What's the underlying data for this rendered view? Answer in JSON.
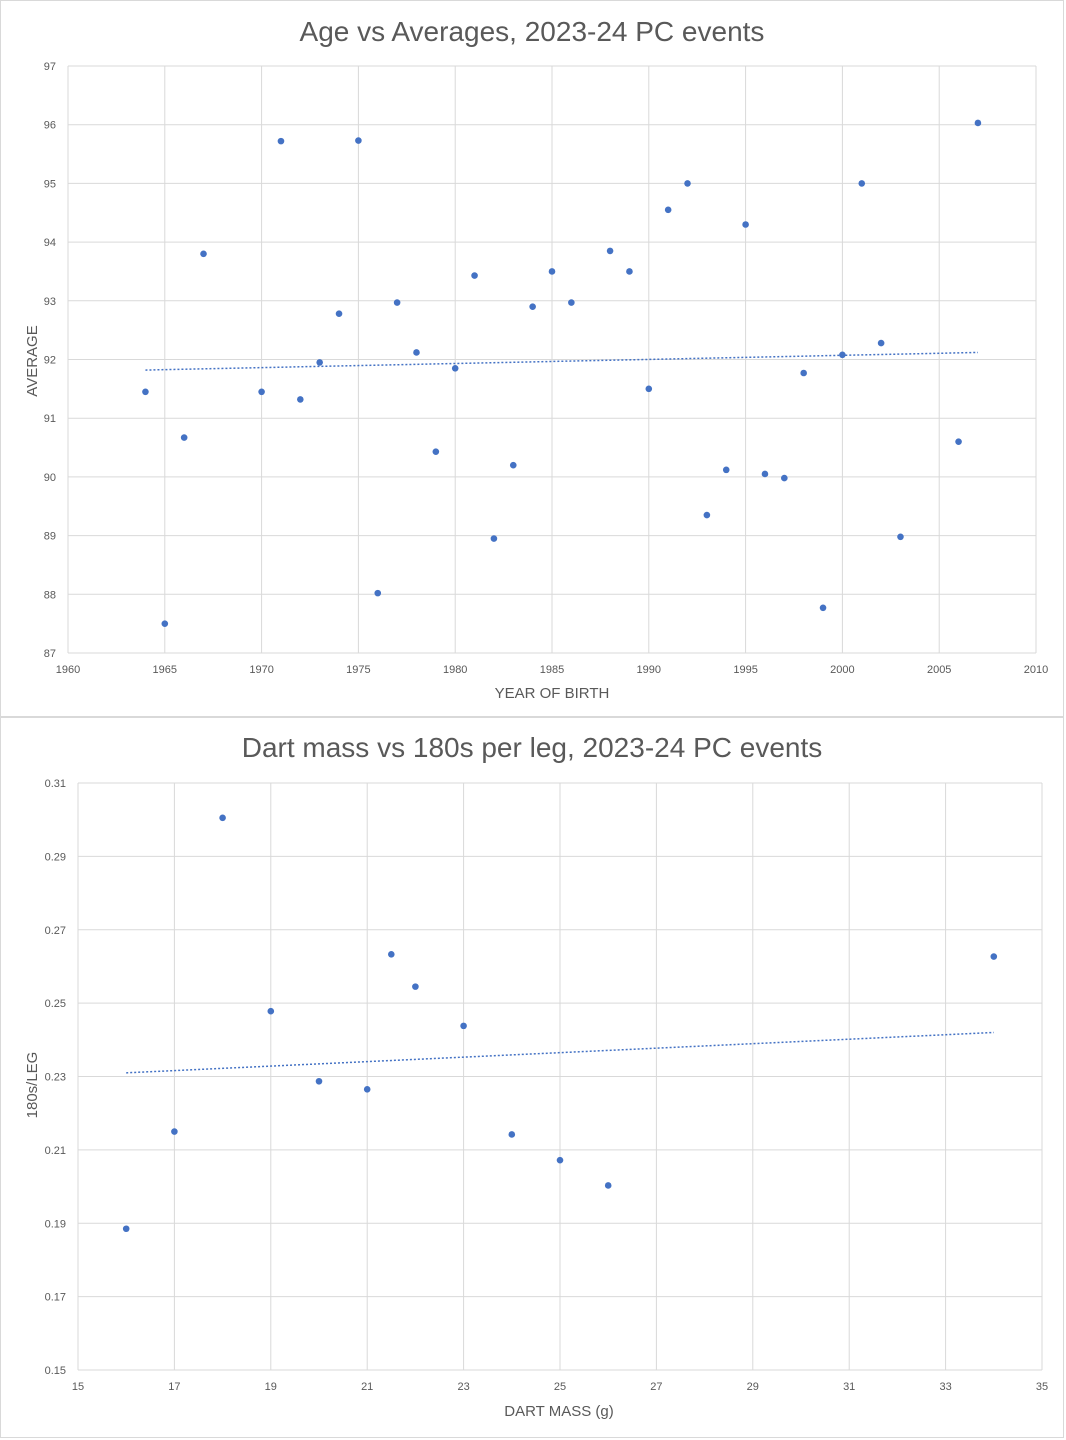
{
  "chart_data": [
    {
      "type": "scatter",
      "title": "Age vs Averages, 2023-24 PC events",
      "xlabel": "YEAR OF BIRTH",
      "ylabel": "AVERAGE",
      "xlim": [
        1960,
        2010
      ],
      "ylim": [
        87,
        97
      ],
      "xticks": [
        1960,
        1965,
        1970,
        1975,
        1980,
        1985,
        1990,
        1995,
        2000,
        2005,
        2010
      ],
      "yticks": [
        87,
        88,
        89,
        90,
        91,
        92,
        93,
        94,
        95,
        96,
        97
      ],
      "grid": true,
      "trendline": {
        "type": "linear",
        "x": [
          1964,
          2007
        ],
        "y": [
          91.82,
          92.12
        ]
      },
      "color": "#4472c4",
      "points": [
        {
          "x": 1964,
          "y": 91.45
        },
        {
          "x": 1965,
          "y": 87.5
        },
        {
          "x": 1966,
          "y": 90.67
        },
        {
          "x": 1967,
          "y": 93.8
        },
        {
          "x": 1970,
          "y": 91.45
        },
        {
          "x": 1971,
          "y": 95.72
        },
        {
          "x": 1972,
          "y": 91.32
        },
        {
          "x": 1973,
          "y": 91.95
        },
        {
          "x": 1974,
          "y": 92.78
        },
        {
          "x": 1975,
          "y": 95.73
        },
        {
          "x": 1976,
          "y": 88.02
        },
        {
          "x": 1977,
          "y": 92.97
        },
        {
          "x": 1978,
          "y": 92.12
        },
        {
          "x": 1979,
          "y": 90.43
        },
        {
          "x": 1980,
          "y": 91.85
        },
        {
          "x": 1981,
          "y": 93.43
        },
        {
          "x": 1982,
          "y": 88.95
        },
        {
          "x": 1983,
          "y": 90.2
        },
        {
          "x": 1984,
          "y": 92.9
        },
        {
          "x": 1985,
          "y": 93.5
        },
        {
          "x": 1986,
          "y": 92.97
        },
        {
          "x": 1988,
          "y": 93.85
        },
        {
          "x": 1989,
          "y": 93.5
        },
        {
          "x": 1990,
          "y": 91.5
        },
        {
          "x": 1991,
          "y": 94.55
        },
        {
          "x": 1992,
          "y": 95.0
        },
        {
          "x": 1993,
          "y": 89.35
        },
        {
          "x": 1994,
          "y": 90.12
        },
        {
          "x": 1995,
          "y": 94.3
        },
        {
          "x": 1996,
          "y": 90.05
        },
        {
          "x": 1997,
          "y": 89.98
        },
        {
          "x": 1998,
          "y": 91.77
        },
        {
          "x": 1999,
          "y": 87.77
        },
        {
          "x": 2000,
          "y": 92.08
        },
        {
          "x": 2001,
          "y": 95.0
        },
        {
          "x": 2002,
          "y": 92.28
        },
        {
          "x": 2003,
          "y": 88.98
        },
        {
          "x": 2006,
          "y": 90.6
        },
        {
          "x": 2007,
          "y": 96.03
        }
      ]
    },
    {
      "type": "scatter",
      "title": "Dart mass vs 180s per leg, 2023-24 PC events",
      "xlabel": "DART MASS (g)",
      "ylabel": "180s/LEG",
      "xlim": [
        15,
        35
      ],
      "ylim": [
        0.15,
        0.31
      ],
      "xticks": [
        15,
        17,
        19,
        21,
        23,
        25,
        27,
        29,
        31,
        33,
        35
      ],
      "yticks": [
        0.15,
        0.17,
        0.19,
        0.21,
        0.23,
        0.25,
        0.27,
        0.29,
        0.31
      ],
      "grid": true,
      "trendline": {
        "type": "linear",
        "x": [
          16,
          34
        ],
        "y": [
          0.231,
          0.242
        ]
      },
      "color": "#4472c4",
      "points": [
        {
          "x": 16,
          "y": 0.1885
        },
        {
          "x": 17,
          "y": 0.215
        },
        {
          "x": 18,
          "y": 0.3005
        },
        {
          "x": 19,
          "y": 0.2478
        },
        {
          "x": 20,
          "y": 0.2287
        },
        {
          "x": 21,
          "y": 0.2265
        },
        {
          "x": 21.5,
          "y": 0.2633
        },
        {
          "x": 22,
          "y": 0.2545
        },
        {
          "x": 23,
          "y": 0.2438
        },
        {
          "x": 24,
          "y": 0.2142
        },
        {
          "x": 25,
          "y": 0.2072
        },
        {
          "x": 26,
          "y": 0.2003
        },
        {
          "x": 34,
          "y": 0.2627
        }
      ]
    }
  ]
}
